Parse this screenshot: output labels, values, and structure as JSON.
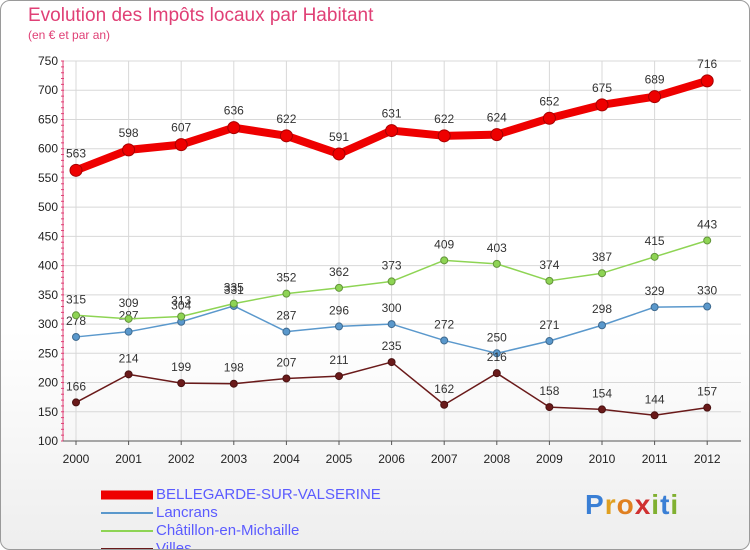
{
  "title": "Evolution des Impôts locaux par Habitant",
  "subtitle": "(en € et par an)",
  "logo": {
    "letters": [
      "P",
      "r",
      "o",
      "x",
      "i",
      "t",
      "i"
    ],
    "colors": [
      "#3a7fd5",
      "#e0a020",
      "#e08020",
      "#d03030",
      "#80b030",
      "#3a7fd5",
      "#80b030"
    ]
  },
  "chart_data": {
    "type": "line",
    "x": [
      "2000",
      "2001",
      "2002",
      "2003",
      "2004",
      "2005",
      "2006",
      "2007",
      "2008",
      "2009",
      "2010",
      "2011",
      "2012"
    ],
    "ylim": [
      100,
      750
    ],
    "yticks": [
      100,
      150,
      200,
      250,
      300,
      350,
      400,
      450,
      500,
      550,
      600,
      650,
      700,
      750
    ],
    "grid": true,
    "legend_position": "bottom-left",
    "series": [
      {
        "name": "BELLEGARDE-SUR-VALSERINE",
        "color": "#ee0000",
        "values": [
          563,
          598,
          607,
          636,
          622,
          591,
          631,
          622,
          624,
          652,
          675,
          689,
          716
        ]
      },
      {
        "name": "Lancrans",
        "color": "#5a98cc",
        "values": [
          278,
          287,
          304,
          331,
          287,
          296,
          300,
          272,
          250,
          271,
          298,
          329,
          330
        ]
      },
      {
        "name": "Châtillon-en-Michaille",
        "color": "#8ed454",
        "values": [
          315,
          309,
          313,
          335,
          352,
          362,
          373,
          409,
          403,
          374,
          387,
          415,
          443
        ]
      },
      {
        "name": "Villes",
        "color": "#6a1a1a",
        "values": [
          166,
          214,
          199,
          198,
          207,
          211,
          235,
          162,
          216,
          158,
          154,
          144,
          157
        ]
      }
    ]
  }
}
